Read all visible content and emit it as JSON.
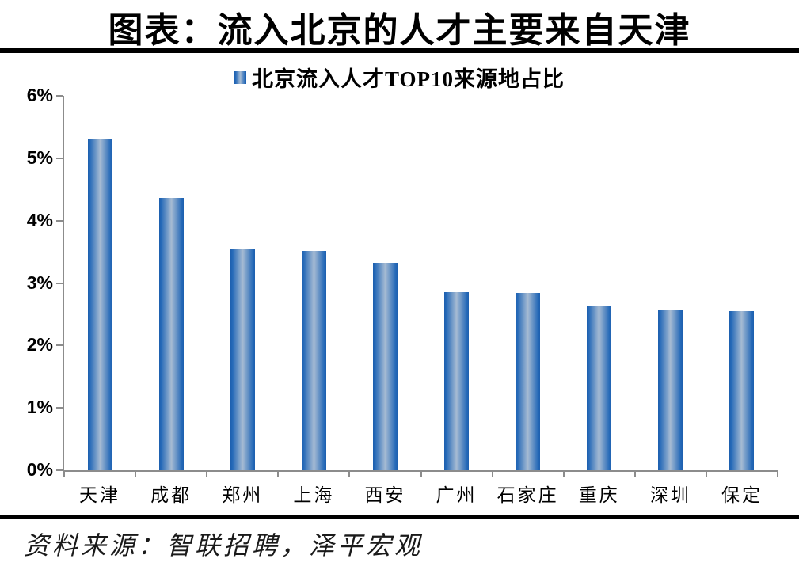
{
  "page": {
    "title": "图表：流入北京的人才主要来自天津",
    "source": "资料来源：智联招聘，泽平宏观"
  },
  "chart_data": {
    "type": "bar",
    "title": "图表：流入北京的人才主要来自天津",
    "legend": [
      {
        "label": "北京流入人才TOP10来源地占比",
        "marker": "gradient-blue-square"
      }
    ],
    "legend_position": "top-center",
    "categories": [
      "天津",
      "成都",
      "郑州",
      "上海",
      "西安",
      "广州",
      "石家庄",
      "重庆",
      "深圳",
      "保定"
    ],
    "series": [
      {
        "name": "北京流入人才TOP10来源地占比",
        "values": [
          5.31,
          4.36,
          3.54,
          3.51,
          3.33,
          2.86,
          2.84,
          2.62,
          2.58,
          2.55
        ]
      }
    ],
    "unit": "%",
    "xlabel": "",
    "ylabel": "",
    "ylim": [
      0,
      6
    ],
    "ytick_step": 1,
    "ytick_labels": [
      "0%",
      "1%",
      "2%",
      "3%",
      "4%",
      "5%",
      "6%"
    ],
    "grid": false,
    "colors": {
      "bar_edge": "#1d5fae",
      "bar_mid": "#2569b8",
      "bar_center": "#a6bbd3",
      "axis": "#8c8c8c",
      "text": "#000000",
      "rule": "#000000"
    }
  }
}
